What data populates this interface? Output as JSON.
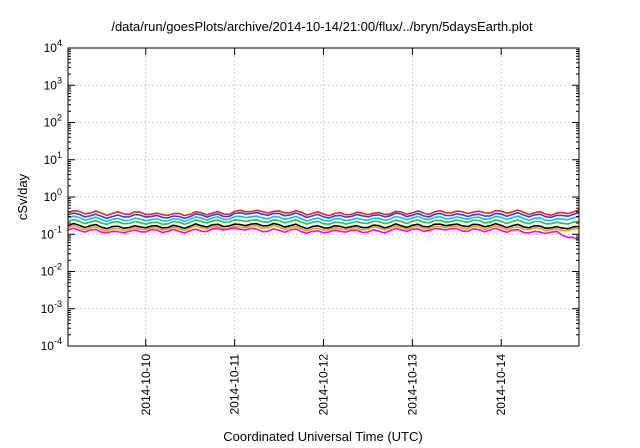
{
  "chart_data": {
    "type": "line",
    "title": "/data/run/goesPlots/archive/2014-10-14/21:00/flux/../bryn/5daysEarth.plot",
    "xlabel": "Coordinated Universal Time (UTC)",
    "ylabel": "cSv/day",
    "y_scale": "log",
    "ylim_exponents": [
      -4,
      4
    ],
    "y_ticks": [
      {
        "base": "10",
        "exp": "-4"
      },
      {
        "base": "10",
        "exp": "-3"
      },
      {
        "base": "10",
        "exp": "-2"
      },
      {
        "base": "10",
        "exp": "-1"
      },
      {
        "base": "10",
        "exp": "0"
      },
      {
        "base": "10",
        "exp": "1"
      },
      {
        "base": "10",
        "exp": "2"
      },
      {
        "base": "10",
        "exp": "3"
      },
      {
        "base": "10",
        "exp": "4"
      }
    ],
    "x_range": [
      "2014-10-09 03:00",
      "2014-10-14 21:00"
    ],
    "x_ticks": [
      "2014-10-10",
      "2014-10-11",
      "2014-10-12",
      "2014-10-13",
      "2014-10-14"
    ],
    "grid": true,
    "x_days": [
      0.0,
      0.25,
      0.5,
      0.75,
      1.0,
      1.25,
      1.5,
      1.75,
      2.0,
      2.25,
      2.5,
      2.75,
      3.0,
      3.25,
      3.5,
      3.75,
      4.0,
      4.25,
      4.5,
      4.75,
      5.0,
      5.25,
      5.5,
      5.75
    ],
    "series": [
      {
        "color": "#e8222e",
        "values": [
          0.38,
          0.37,
          0.36,
          0.4,
          0.37,
          0.36,
          0.38,
          0.35,
          0.4,
          0.37,
          0.38,
          0.36,
          0.36,
          0.39,
          0.38,
          0.4,
          0.37,
          0.38,
          0.36,
          0.37,
          0.4,
          0.38,
          0.37,
          0.45
        ]
      },
      {
        "color": "#2f3fe8",
        "values": [
          0.33,
          0.31,
          0.3,
          0.34,
          0.32,
          0.3,
          0.33,
          0.3,
          0.35,
          0.32,
          0.33,
          0.31,
          0.31,
          0.34,
          0.33,
          0.35,
          0.31,
          0.32,
          0.3,
          0.31,
          0.34,
          0.33,
          0.32,
          0.38
        ]
      },
      {
        "color": "#00c8e0",
        "values": [
          0.27,
          0.26,
          0.25,
          0.27,
          0.26,
          0.25,
          0.27,
          0.25,
          0.28,
          0.26,
          0.27,
          0.25,
          0.26,
          0.27,
          0.27,
          0.28,
          0.26,
          0.26,
          0.25,
          0.26,
          0.28,
          0.27,
          0.26,
          0.3
        ]
      },
      {
        "color": "#2fbf3a",
        "values": [
          0.22,
          0.21,
          0.21,
          0.22,
          0.21,
          0.21,
          0.22,
          0.21,
          0.22,
          0.21,
          0.22,
          0.21,
          0.21,
          0.22,
          0.22,
          0.22,
          0.21,
          0.21,
          0.21,
          0.21,
          0.22,
          0.22,
          0.21,
          0.22
        ]
      },
      {
        "color": "#000000",
        "values": [
          0.17,
          0.17,
          0.16,
          0.17,
          0.17,
          0.16,
          0.17,
          0.16,
          0.17,
          0.17,
          0.17,
          0.16,
          0.17,
          0.17,
          0.17,
          0.17,
          0.16,
          0.17,
          0.16,
          0.17,
          0.17,
          0.17,
          0.16,
          0.16
        ]
      },
      {
        "color": "#f4a000",
        "values": [
          0.15,
          0.15,
          0.14,
          0.15,
          0.15,
          0.14,
          0.15,
          0.14,
          0.15,
          0.15,
          0.15,
          0.14,
          0.15,
          0.15,
          0.15,
          0.15,
          0.14,
          0.15,
          0.14,
          0.15,
          0.15,
          0.15,
          0.14,
          0.14
        ]
      },
      {
        "color": "#ff00ff",
        "values": [
          0.13,
          0.13,
          0.12,
          0.13,
          0.13,
          0.12,
          0.12,
          0.13,
          0.13,
          0.12,
          0.13,
          0.12,
          0.13,
          0.13,
          0.12,
          0.13,
          0.12,
          0.13,
          0.12,
          0.13,
          0.13,
          0.12,
          0.12,
          0.07
        ]
      }
    ]
  }
}
